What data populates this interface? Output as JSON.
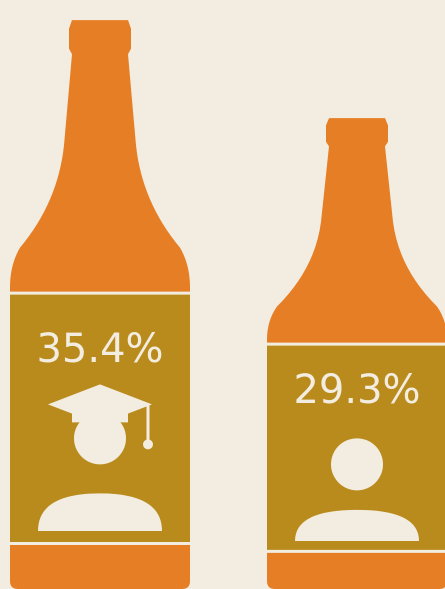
{
  "chart_data": {
    "type": "pictograph",
    "values": [
      35.4,
      29.3
    ],
    "value_labels": [
      "35.4%",
      "29.3%"
    ],
    "color": "#e67e25",
    "label_color": "#b98b1c"
  }
}
